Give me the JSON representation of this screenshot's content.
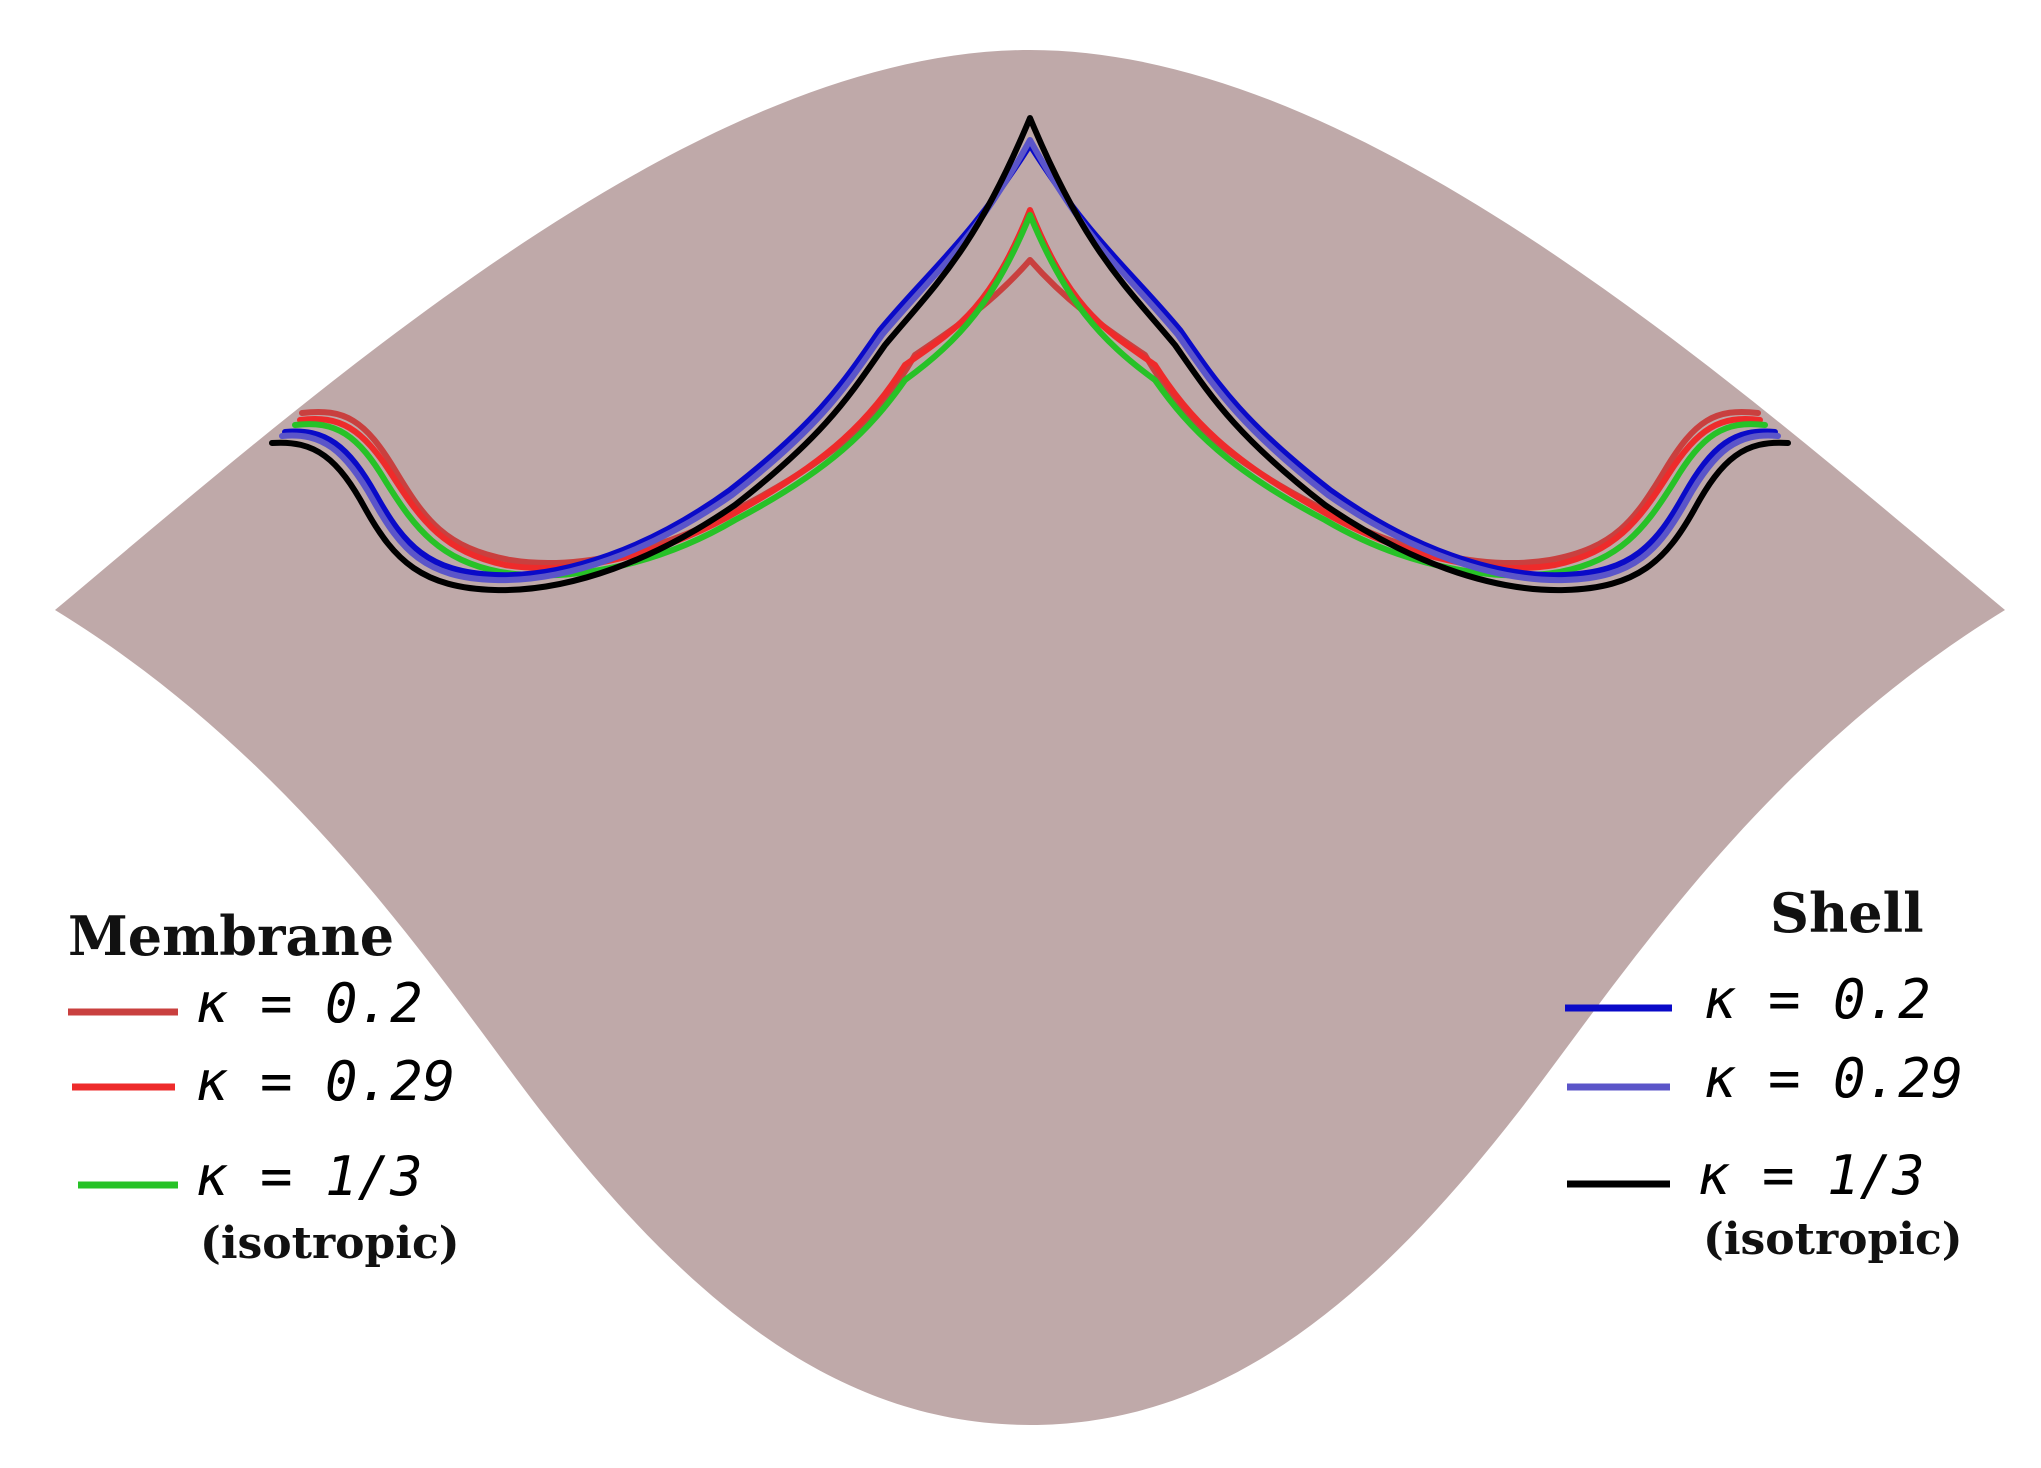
{
  "figure": {
    "shape_fill": "#bfa9a9",
    "background": "#ffffff"
  },
  "legend_membrane": {
    "title": "Membrane",
    "entries": [
      {
        "label": "κ = 0.2",
        "color": "#c9403f"
      },
      {
        "label": "κ = 0.29",
        "color": "#ee2b2b"
      },
      {
        "label": "κ = 1/3",
        "color": "#27c227"
      }
    ],
    "note": "(isotropic)"
  },
  "legend_shell": {
    "title": "Shell",
    "entries": [
      {
        "label": "κ = 0.2",
        "color": "#0a0ac8"
      },
      {
        "label": "κ = 0.29",
        "color": "#5b55c9"
      },
      {
        "label": "κ = 1/3",
        "color": "#000000"
      }
    ],
    "note": "(isotropic)"
  }
}
